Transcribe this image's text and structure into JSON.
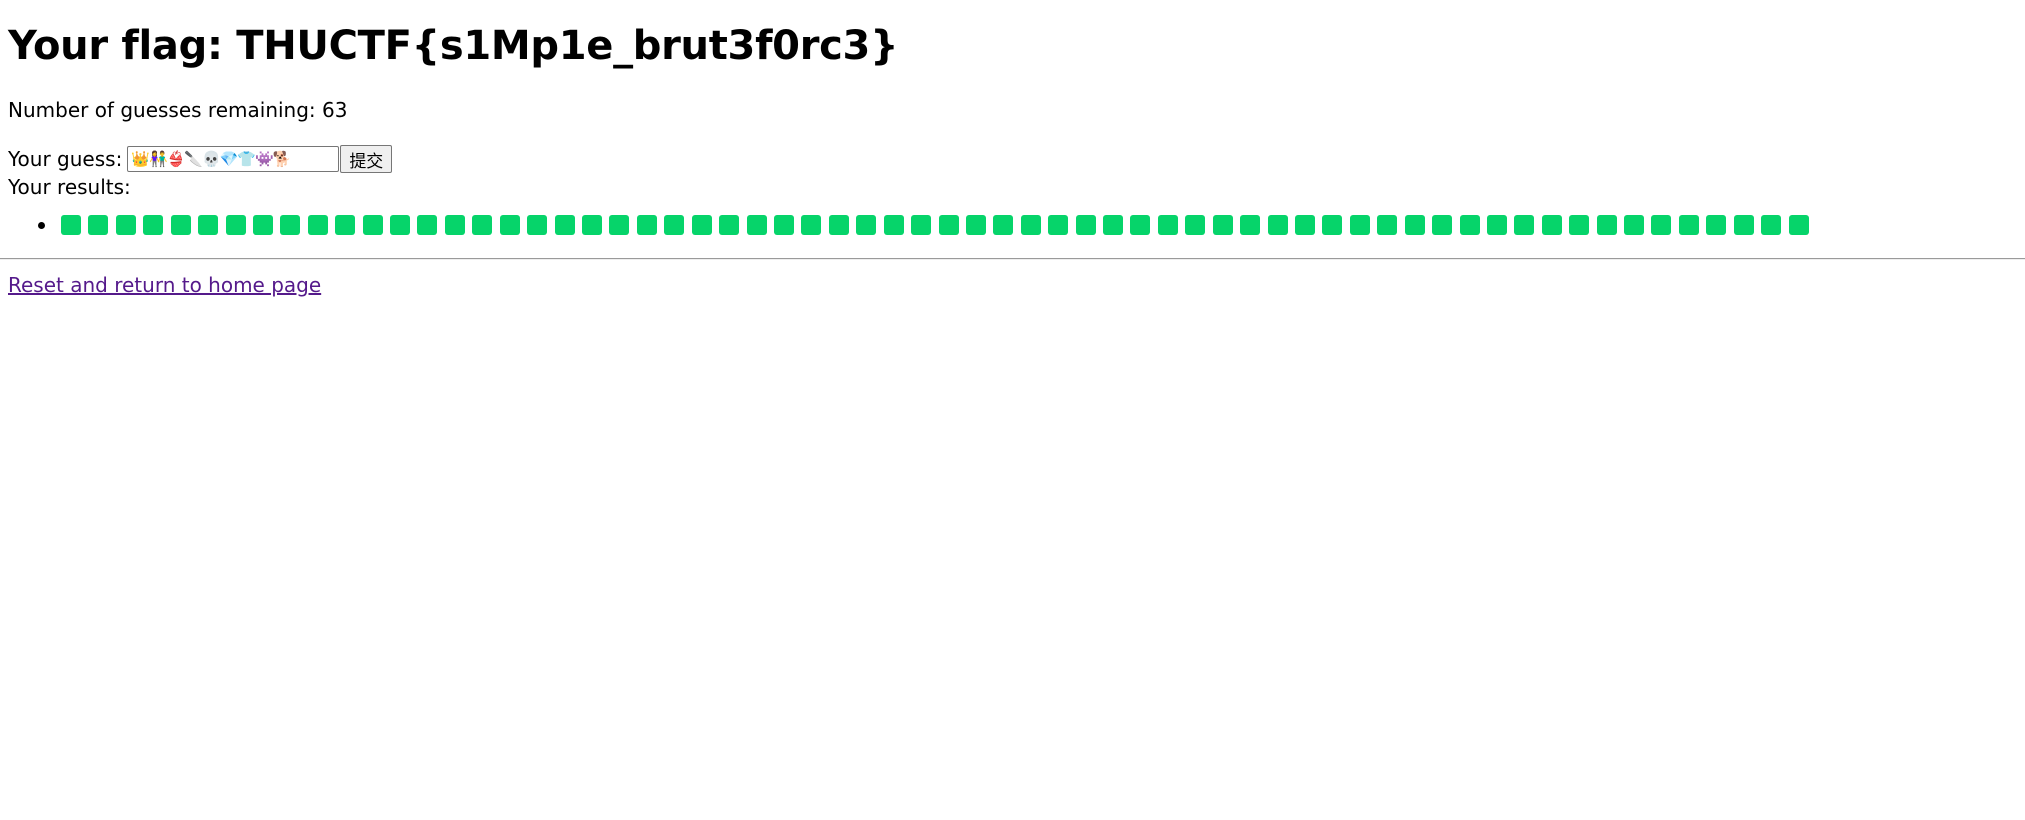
{
  "heading": {
    "flag_text": "Your flag: THUCTF{s1Mp1e_brut3f0rc3}"
  },
  "status": {
    "remaining_label": "Number of guesses remaining:",
    "remaining_count": "63"
  },
  "guess_form": {
    "label": "Your guess:",
    "value": "👑👫👙🔪💀💎👕👾🐕",
    "submit_label": "提交"
  },
  "results": {
    "label": "Your results:",
    "rows": [
      {
        "square_color": "#06d46a",
        "square_count": 64
      }
    ]
  },
  "footer": {
    "reset_link_label": "Reset and return to home page"
  }
}
